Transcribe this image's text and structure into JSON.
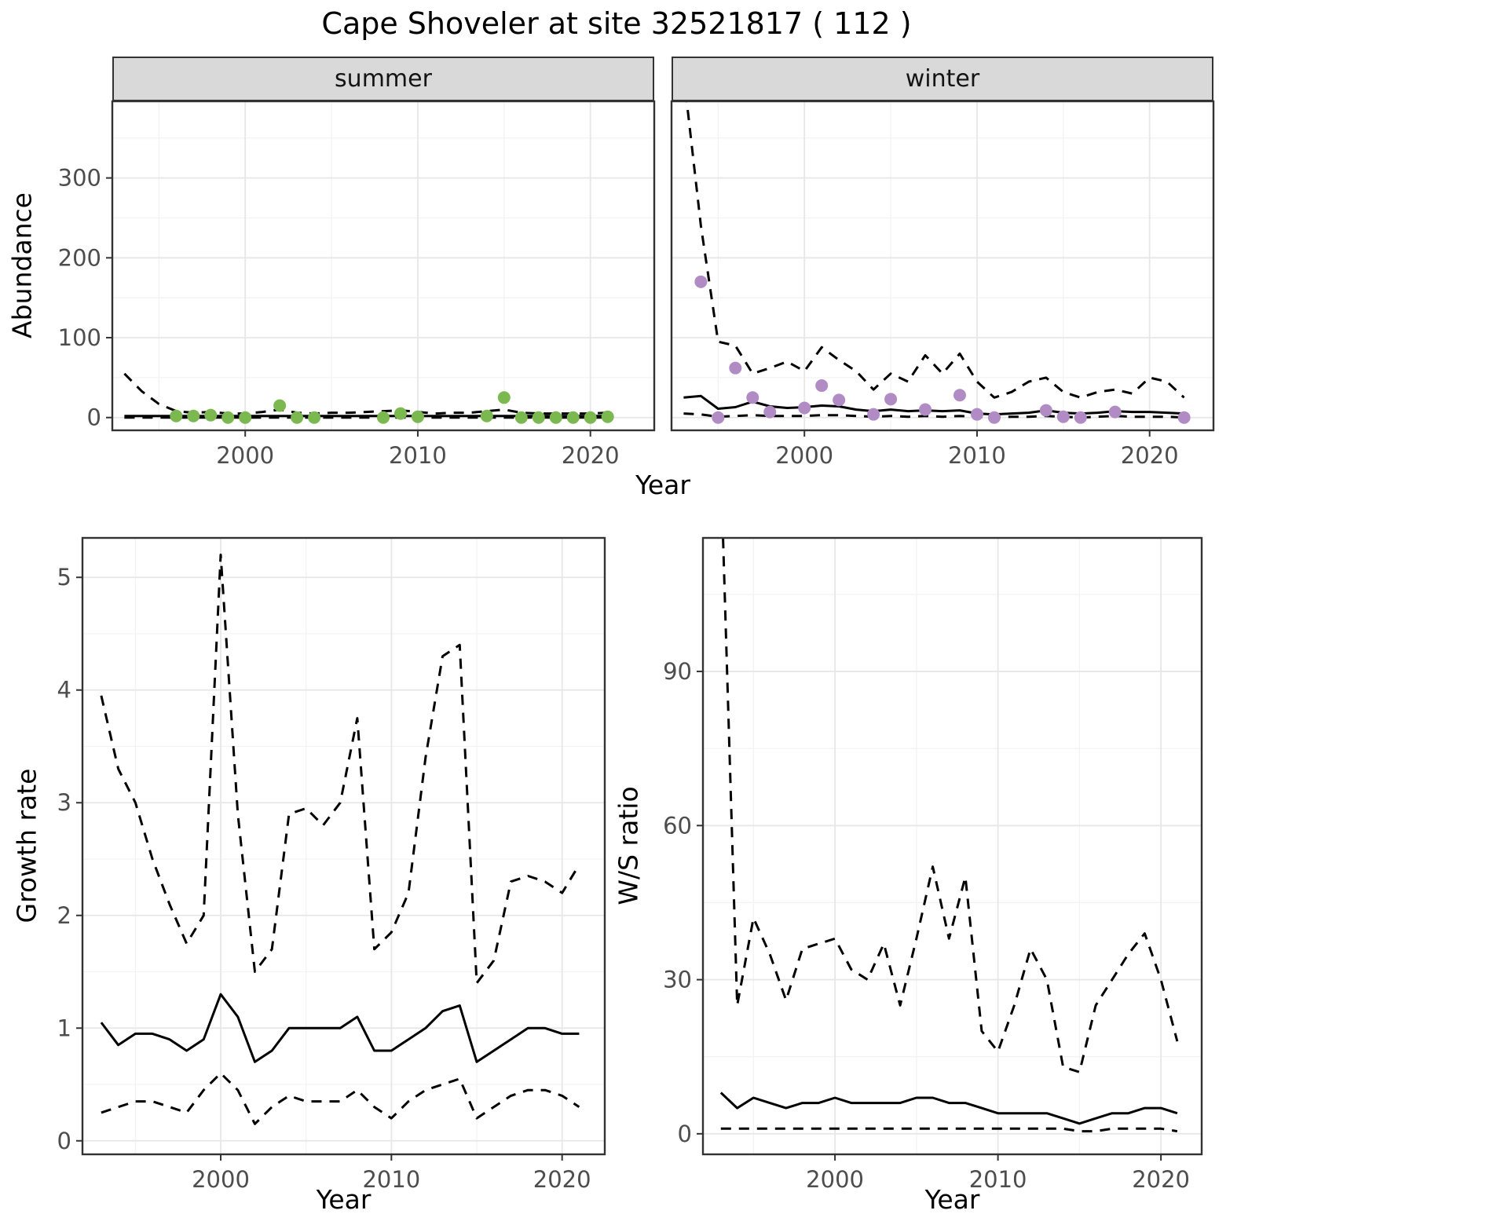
{
  "title": "Cape Shoveler at site 32521817 ( 112 )",
  "colors": {
    "line": "#000000",
    "summer_points": "#7bb84f",
    "winter_points": "#b18cc4",
    "strip_background": "#d9d9d9",
    "panel_border": "#333333",
    "grid_major": "#e7e7e7",
    "grid_minor": "#f3f3f3",
    "tick_label": "#4d4d4d"
  },
  "chart_data": [
    {
      "name": "summer-abundance",
      "type": "line",
      "facet_label": "summer",
      "xlabel": "Year",
      "ylabel": "Abundance",
      "xlim": [
        1992.3,
        2023.7
      ],
      "ylim": [
        -16,
        396
      ],
      "xticks": [
        2000,
        2010,
        2020
      ],
      "yticks": [
        0,
        100,
        200,
        300
      ],
      "xminor": [
        1995,
        2005,
        2015
      ],
      "yminor": [
        50,
        150,
        250,
        350
      ],
      "series": [
        {
          "name": "upper-credible",
          "type": "line",
          "dash": true,
          "x": [
            1993,
            1994,
            1995,
            1996,
            1997,
            1998,
            1999,
            2000,
            2001,
            2002,
            2003,
            2004,
            2005,
            2006,
            2007,
            2008,
            2009,
            2010,
            2011,
            2012,
            2013,
            2014,
            2015,
            2016,
            2017,
            2018,
            2019,
            2020,
            2021
          ],
          "y": [
            55,
            33,
            17,
            8,
            6,
            7,
            5,
            5,
            7,
            10,
            6,
            5,
            6,
            6,
            7,
            8,
            9,
            7,
            5,
            6,
            6,
            8,
            10,
            6,
            5,
            5,
            5,
            5,
            6
          ]
        },
        {
          "name": "lower-credible",
          "type": "line",
          "dash": true,
          "x": [
            1993,
            1994,
            1995,
            1996,
            1997,
            1998,
            1999,
            2000,
            2001,
            2002,
            2003,
            2004,
            2005,
            2006,
            2007,
            2008,
            2009,
            2010,
            2011,
            2012,
            2013,
            2014,
            2015,
            2016,
            2017,
            2018,
            2019,
            2020,
            2021
          ],
          "y": [
            0,
            0,
            0,
            0,
            0,
            0,
            0,
            0,
            0,
            0,
            0,
            0,
            0,
            0,
            0,
            0,
            0,
            0,
            0,
            0,
            0,
            0,
            0,
            0,
            0,
            0,
            0,
            0,
            0
          ]
        },
        {
          "name": "median",
          "type": "line",
          "dash": false,
          "x": [
            1993,
            1994,
            1995,
            1996,
            1997,
            1998,
            1999,
            2000,
            2001,
            2002,
            2003,
            2004,
            2005,
            2006,
            2007,
            2008,
            2009,
            2010,
            2011,
            2012,
            2013,
            2014,
            2015,
            2016,
            2017,
            2018,
            2019,
            2020,
            2021
          ],
          "y": [
            2,
            2,
            2,
            2,
            2,
            2,
            2,
            2,
            2,
            2,
            2,
            2,
            2,
            2,
            2,
            2,
            2,
            2,
            2,
            2,
            2,
            2,
            2,
            2,
            2,
            2,
            2,
            2,
            2
          ]
        },
        {
          "name": "observed-counts",
          "type": "points",
          "color": "#7bb84f",
          "x": [
            1996,
            1997,
            1998,
            1999,
            2000,
            2002,
            2003,
            2004,
            2008,
            2009,
            2010,
            2014,
            2015,
            2016,
            2017,
            2018,
            2019,
            2020,
            2021
          ],
          "y": [
            2,
            2,
            3,
            0,
            0,
            15,
            0,
            0,
            0,
            5,
            1,
            2,
            25,
            0,
            0,
            0,
            0,
            0,
            1
          ]
        }
      ]
    },
    {
      "name": "winter-abundance",
      "type": "line",
      "facet_label": "winter",
      "xlabel": "Year",
      "ylabel": "Abundance",
      "xlim": [
        1992.3,
        2023.7
      ],
      "ylim": [
        -16,
        396
      ],
      "xticks": [
        2000,
        2010,
        2020
      ],
      "yticks": [
        0,
        100,
        200,
        300
      ],
      "xminor": [
        1995,
        2005,
        2015
      ],
      "yminor": [
        50,
        150,
        250,
        350
      ],
      "series": [
        {
          "name": "upper-credible",
          "type": "line",
          "dash": true,
          "x": [
            1993,
            1994,
            1995,
            1996,
            1997,
            1998,
            1999,
            2000,
            2001,
            2002,
            2003,
            2004,
            2005,
            2006,
            2007,
            2008,
            2009,
            2010,
            2011,
            2012,
            2013,
            2014,
            2015,
            2016,
            2017,
            2018,
            2019,
            2020,
            2021,
            2022
          ],
          "y": [
            430,
            240,
            95,
            90,
            55,
            62,
            70,
            58,
            88,
            72,
            58,
            35,
            55,
            45,
            78,
            55,
            80,
            45,
            25,
            32,
            45,
            50,
            32,
            25,
            32,
            35,
            30,
            50,
            45,
            25
          ]
        },
        {
          "name": "lower-credible",
          "type": "line",
          "dash": true,
          "x": [
            1993,
            1994,
            1995,
            1996,
            1997,
            1998,
            1999,
            2000,
            2001,
            2002,
            2003,
            2004,
            2005,
            2006,
            2007,
            2008,
            2009,
            2010,
            2011,
            2012,
            2013,
            2014,
            2015,
            2016,
            2017,
            2018,
            2019,
            2020,
            2021,
            2022
          ],
          "y": [
            5,
            4,
            1,
            2,
            3,
            2,
            2,
            2,
            3,
            3,
            2,
            1,
            2,
            1,
            2,
            1,
            2,
            1,
            0,
            1,
            1,
            2,
            1,
            0,
            1,
            2,
            1,
            1,
            1,
            0
          ]
        },
        {
          "name": "median",
          "type": "line",
          "dash": false,
          "x": [
            1993,
            1994,
            1995,
            1996,
            1997,
            1998,
            1999,
            2000,
            2001,
            2002,
            2003,
            2004,
            2005,
            2006,
            2007,
            2008,
            2009,
            2010,
            2011,
            2012,
            2013,
            2014,
            2015,
            2016,
            2017,
            2018,
            2019,
            2020,
            2021,
            2022
          ],
          "y": [
            25,
            27,
            11,
            13,
            20,
            14,
            12,
            13,
            15,
            14,
            10,
            8,
            10,
            8,
            9,
            8,
            9,
            5,
            4,
            5,
            6,
            9,
            6,
            5,
            6,
            8,
            7,
            7,
            6,
            5
          ]
        },
        {
          "name": "observed-counts",
          "type": "points",
          "color": "#b18cc4",
          "x": [
            1994,
            1995,
            1996,
            1997,
            1998,
            2000,
            2001,
            2002,
            2004,
            2005,
            2007,
            2009,
            2010,
            2011,
            2014,
            2015,
            2016,
            2018,
            2022
          ],
          "y": [
            170,
            0,
            62,
            25,
            7,
            12,
            40,
            22,
            4,
            23,
            10,
            28,
            4,
            0,
            9,
            1,
            0,
            7,
            0
          ]
        }
      ]
    },
    {
      "name": "growth-rate",
      "type": "line",
      "xlabel": "Year",
      "ylabel": "Growth rate",
      "xlim": [
        1991.9,
        2022.5
      ],
      "ylim": [
        -0.12,
        5.35
      ],
      "xticks": [
        2000,
        2010,
        2020
      ],
      "yticks": [
        0,
        1,
        2,
        3,
        4,
        5
      ],
      "xminor": [
        1995,
        2005,
        2015
      ],
      "yminor": [
        0.5,
        1.5,
        2.5,
        3.5,
        4.5
      ],
      "series": [
        {
          "name": "upper-credible",
          "type": "line",
          "dash": true,
          "x": [
            1993,
            1994,
            1995,
            1996,
            1997,
            1998,
            1999,
            2000,
            2001,
            2002,
            2003,
            2004,
            2005,
            2006,
            2007,
            2008,
            2009,
            2010,
            2011,
            2012,
            2013,
            2014,
            2015,
            2016,
            2017,
            2018,
            2019,
            2020,
            2021
          ],
          "y": [
            3.95,
            3.3,
            3.0,
            2.5,
            2.1,
            1.75,
            2.0,
            5.2,
            2.9,
            1.5,
            1.7,
            2.9,
            2.95,
            2.8,
            3.0,
            3.75,
            1.7,
            1.85,
            2.2,
            3.4,
            4.3,
            4.4,
            1.4,
            1.6,
            2.3,
            2.35,
            2.3,
            2.2,
            2.45
          ]
        },
        {
          "name": "lower-credible",
          "type": "line",
          "dash": true,
          "x": [
            1993,
            1994,
            1995,
            1996,
            1997,
            1998,
            1999,
            2000,
            2001,
            2002,
            2003,
            2004,
            2005,
            2006,
            2007,
            2008,
            2009,
            2010,
            2011,
            2012,
            2013,
            2014,
            2015,
            2016,
            2017,
            2018,
            2019,
            2020,
            2021
          ],
          "y": [
            0.25,
            0.3,
            0.35,
            0.35,
            0.3,
            0.25,
            0.45,
            0.6,
            0.45,
            0.15,
            0.3,
            0.4,
            0.35,
            0.35,
            0.35,
            0.45,
            0.3,
            0.2,
            0.35,
            0.45,
            0.5,
            0.55,
            0.2,
            0.3,
            0.4,
            0.45,
            0.45,
            0.4,
            0.3
          ]
        },
        {
          "name": "median",
          "type": "line",
          "dash": false,
          "x": [
            1993,
            1994,
            1995,
            1996,
            1997,
            1998,
            1999,
            2000,
            2001,
            2002,
            2003,
            2004,
            2005,
            2006,
            2007,
            2008,
            2009,
            2010,
            2011,
            2012,
            2013,
            2014,
            2015,
            2016,
            2017,
            2018,
            2019,
            2020,
            2021
          ],
          "y": [
            1.05,
            0.85,
            0.95,
            0.95,
            0.9,
            0.8,
            0.9,
            1.3,
            1.1,
            0.7,
            0.8,
            1.0,
            1.0,
            1.0,
            1.0,
            1.1,
            0.8,
            0.8,
            0.9,
            1.0,
            1.15,
            1.2,
            0.7,
            0.8,
            0.9,
            1.0,
            1.0,
            0.95,
            0.95
          ]
        }
      ]
    },
    {
      "name": "winter-summer-ratio",
      "type": "line",
      "xlabel": "Year",
      "ylabel": "W/S ratio",
      "xlim": [
        1991.9,
        2022.5
      ],
      "ylim": [
        -4,
        116
      ],
      "xticks": [
        2000,
        2010,
        2020
      ],
      "yticks": [
        0,
        30,
        60,
        90
      ],
      "xminor": [
        1995,
        2005,
        2015
      ],
      "yminor": [
        15,
        45,
        75,
        105
      ],
      "series": [
        {
          "name": "upper-credible",
          "type": "line",
          "dash": true,
          "x": [
            1993,
            1994,
            1995,
            1996,
            1997,
            1998,
            1999,
            2000,
            2001,
            2002,
            2003,
            2004,
            2005,
            2006,
            2007,
            2008,
            2009,
            2010,
            2011,
            2012,
            2013,
            2014,
            2015,
            2016,
            2017,
            2018,
            2019,
            2020,
            2021
          ],
          "y": [
            130,
            25,
            42,
            35,
            26,
            36,
            37,
            38,
            32,
            30,
            37,
            25,
            38,
            52,
            38,
            50,
            20,
            16,
            25,
            36,
            30,
            13,
            12,
            25,
            30,
            35,
            39,
            30,
            18
          ]
        },
        {
          "name": "lower-credible",
          "type": "line",
          "dash": true,
          "x": [
            1993,
            1994,
            1995,
            1996,
            1997,
            1998,
            1999,
            2000,
            2001,
            2002,
            2003,
            2004,
            2005,
            2006,
            2007,
            2008,
            2009,
            2010,
            2011,
            2012,
            2013,
            2014,
            2015,
            2016,
            2017,
            2018,
            2019,
            2020,
            2021
          ],
          "y": [
            1,
            1,
            1,
            1,
            1,
            1,
            1,
            1,
            1,
            1,
            1,
            1,
            1,
            1,
            1,
            1,
            1,
            1,
            1,
            1,
            1,
            1,
            0.5,
            0.5,
            1,
            1,
            1,
            1,
            0.5
          ]
        },
        {
          "name": "median",
          "type": "line",
          "dash": false,
          "x": [
            1993,
            1994,
            1995,
            1996,
            1997,
            1998,
            1999,
            2000,
            2001,
            2002,
            2003,
            2004,
            2005,
            2006,
            2007,
            2008,
            2009,
            2010,
            2011,
            2012,
            2013,
            2014,
            2015,
            2016,
            2017,
            2018,
            2019,
            2020,
            2021
          ],
          "y": [
            8,
            5,
            7,
            6,
            5,
            6,
            6,
            7,
            6,
            6,
            6,
            6,
            7,
            7,
            6,
            6,
            5,
            4,
            4,
            4,
            4,
            3,
            2,
            3,
            4,
            4,
            5,
            5,
            4
          ]
        }
      ]
    }
  ]
}
